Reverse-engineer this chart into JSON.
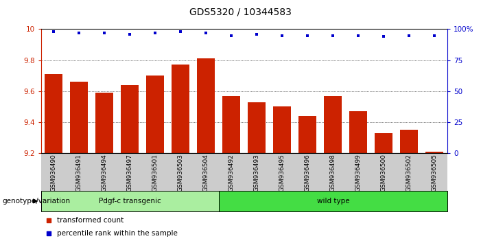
{
  "title": "GDS5320 / 10344583",
  "categories": [
    "GSM936490",
    "GSM936491",
    "GSM936494",
    "GSM936497",
    "GSM936501",
    "GSM936503",
    "GSM936504",
    "GSM936492",
    "GSM936493",
    "GSM936495",
    "GSM936496",
    "GSM936498",
    "GSM936499",
    "GSM936500",
    "GSM936502",
    "GSM936505"
  ],
  "bar_values": [
    9.71,
    9.66,
    9.59,
    9.64,
    9.7,
    9.77,
    9.81,
    9.57,
    9.53,
    9.5,
    9.44,
    9.57,
    9.47,
    9.33,
    9.35,
    9.21
  ],
  "percentile_values": [
    98,
    97,
    97,
    96,
    97,
    98,
    97,
    95,
    96,
    95,
    95,
    95,
    95,
    94,
    95,
    95
  ],
  "ylim": [
    9.2,
    10.0
  ],
  "yticks": [
    9.2,
    9.4,
    9.6,
    9.8,
    10.0
  ],
  "right_yticks": [
    0,
    25,
    50,
    75,
    100
  ],
  "bar_color": "#cc2200",
  "dot_color": "#0000cc",
  "tick_area_color": "#cccccc",
  "group1_label": "Pdgf-c transgenic",
  "group2_label": "wild type",
  "group1_color": "#aaeea0",
  "group2_color": "#44dd44",
  "group1_count": 7,
  "group2_count": 9,
  "legend_bar_label": "transformed count",
  "legend_dot_label": "percentile rank within the sample",
  "genotype_label": "genotype/variation",
  "title_fontsize": 10,
  "axis_fontsize": 7.5,
  "tick_fontsize": 6.5,
  "label_fontsize": 7.5,
  "bar_width": 0.7
}
